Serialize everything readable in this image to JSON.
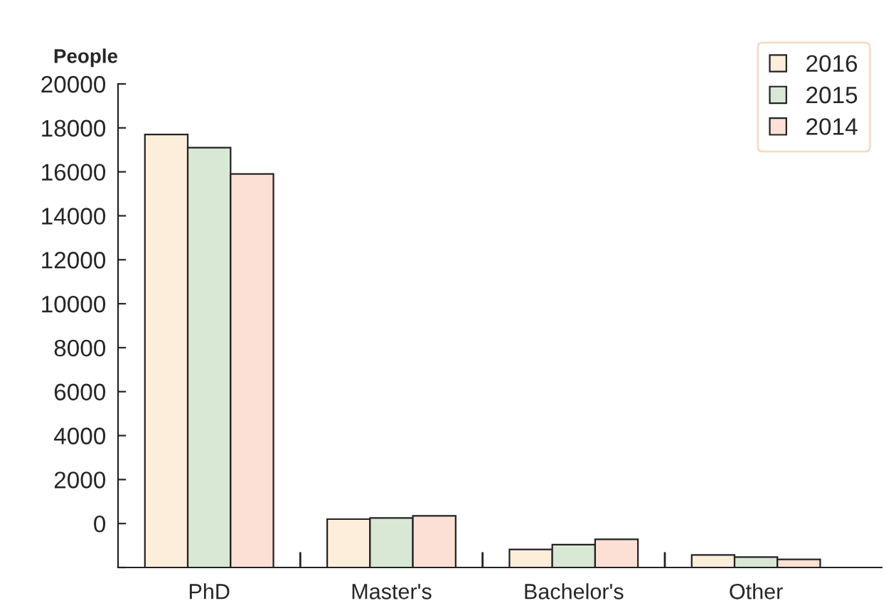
{
  "chart_data": {
    "type": "bar",
    "ylabel": "People",
    "categories": [
      "PhD",
      "Master's",
      "Bachelor's",
      "Other"
    ],
    "series": [
      {
        "name": "2016",
        "color": "#fdeedb",
        "values": [
          19700,
          2200,
          820,
          570
        ],
        "base": [
          -2000,
          -2000,
          -2000,
          -2000
        ]
      },
      {
        "name": "2015",
        "color": "#d9e8d5",
        "values": [
          19100,
          2250,
          1040,
          470
        ],
        "base": [
          -2000,
          -2000,
          -2000,
          -2000
        ]
      },
      {
        "name": "2014",
        "color": "#fce0d5",
        "values": [
          17900,
          2350,
          1280,
          370
        ],
        "base": [
          -2000,
          -2000,
          -2000,
          -2000
        ]
      }
    ],
    "ylim": [
      -2000,
      20000
    ],
    "yticks": [
      {
        "value": -2000,
        "label": null
      },
      0,
      2000,
      4000,
      6000,
      8000,
      10000,
      12000,
      14000,
      16000,
      18000,
      20000
    ],
    "grid": false,
    "legend": "top right"
  }
}
